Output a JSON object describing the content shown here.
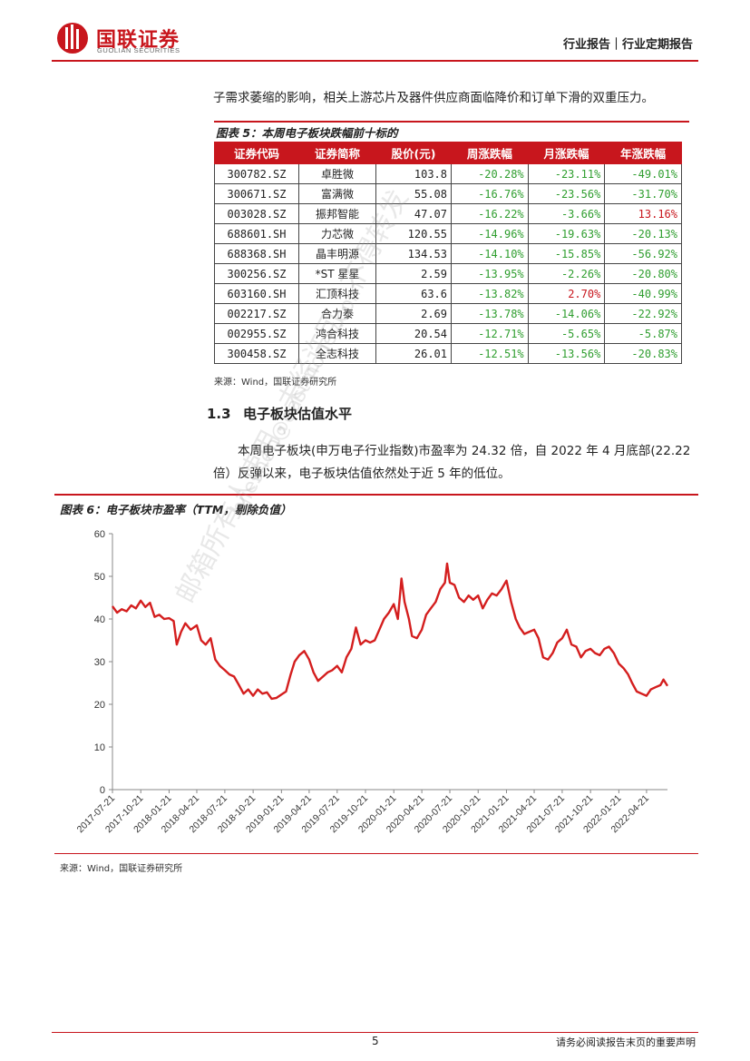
{
  "header": {
    "logo_cn": "国联证券",
    "logo_en": "GUOLIAN SECURITIES",
    "right_text": "行业报告｜行业定期报告"
  },
  "intro_text": "子需求萎缩的影响，相关上游芯片及器件供应商面临降价和订单下滑的双重压力。",
  "table5": {
    "title": "图表 5：本周电子板块跌幅前十标的",
    "headers": [
      "证券代码",
      "证券简称",
      "股价(元)",
      "周涨跌幅",
      "月涨跌幅",
      "年涨跌幅"
    ],
    "rows": [
      {
        "code": "300782.SZ",
        "name": "卓胜微",
        "price": "103.8",
        "week": "-20.28%",
        "month": "-23.11%",
        "year": "-49.01%",
        "year_up": false,
        "month_up": false
      },
      {
        "code": "300671.SZ",
        "name": "富满微",
        "price": "55.08",
        "week": "-16.76%",
        "month": "-23.56%",
        "year": "-31.70%",
        "year_up": false,
        "month_up": false
      },
      {
        "code": "003028.SZ",
        "name": "振邦智能",
        "price": "47.07",
        "week": "-16.22%",
        "month": "-3.66%",
        "year": "13.16%",
        "year_up": true,
        "month_up": false
      },
      {
        "code": "688601.SH",
        "name": "力芯微",
        "price": "120.55",
        "week": "-14.96%",
        "month": "-19.63%",
        "year": "-20.13%",
        "year_up": false,
        "month_up": false
      },
      {
        "code": "688368.SH",
        "name": "晶丰明源",
        "price": "134.53",
        "week": "-14.10%",
        "month": "-15.85%",
        "year": "-56.92%",
        "year_up": false,
        "month_up": false
      },
      {
        "code": "300256.SZ",
        "name": "*ST 星星",
        "price": "2.59",
        "week": "-13.95%",
        "month": "-2.26%",
        "year": "-20.80%",
        "year_up": false,
        "month_up": false
      },
      {
        "code": "603160.SH",
        "name": "汇顶科技",
        "price": "63.6",
        "week": "-13.82%",
        "month": "2.70%",
        "year": "-40.99%",
        "year_up": false,
        "month_up": true
      },
      {
        "code": "002217.SZ",
        "name": "合力泰",
        "price": "2.69",
        "week": "-13.78%",
        "month": "-14.06%",
        "year": "-22.92%",
        "year_up": false,
        "month_up": false
      },
      {
        "code": "002955.SZ",
        "name": "鸿合科技",
        "price": "20.54",
        "week": "-12.71%",
        "month": "-5.65%",
        "year": "-5.87%",
        "year_up": false,
        "month_up": false
      },
      {
        "code": "300458.SZ",
        "name": "全志科技",
        "price": "26.01",
        "week": "-12.51%",
        "month": "-13.56%",
        "year": "-20.83%",
        "year_up": false,
        "month_up": false
      }
    ],
    "source": "来源：Wind，国联证券研究所"
  },
  "section": {
    "number": "1.3",
    "title": "电子板块估值水平",
    "body": "本周电子板块(申万电子行业指数)市盈率为 24.32 倍，自 2022 年 4 月底部(22.22 倍）反弹以来，电子板块估值依然处于近 5 年的低位。"
  },
  "figure6": {
    "title": "图表 6：电子板块市盈率（TTM，剔除负值）",
    "source": "来源：Wind，国联证券研究所"
  },
  "chart_data": {
    "type": "line",
    "title": "",
    "xlabel": "",
    "ylabel": "",
    "ylim": [
      0,
      60
    ],
    "yticks": [
      0,
      10,
      20,
      30,
      40,
      50,
      60
    ],
    "xtick_labels": [
      "2017-07-21",
      "2017-10-21",
      "2018-01-21",
      "2018-04-21",
      "2018-07-21",
      "2018-10-21",
      "2019-01-21",
      "2019-04-21",
      "2019-07-21",
      "2019-10-21",
      "2020-01-21",
      "2020-04-21",
      "2020-07-21",
      "2020-10-21",
      "2021-01-21",
      "2021-04-21",
      "2021-07-21",
      "2021-10-21",
      "2022-01-21",
      "2022-04-21"
    ],
    "line_color": "#d41e1e",
    "grid": false,
    "series": [
      {
        "values": [
          [
            "2017-07-21",
            43.0
          ],
          [
            "2017-08-05",
            41.5
          ],
          [
            "2017-08-20",
            42.3
          ],
          [
            "2017-09-05",
            41.8
          ],
          [
            "2017-09-20",
            43.2
          ],
          [
            "2017-10-05",
            42.5
          ],
          [
            "2017-10-21",
            44.3
          ],
          [
            "2017-11-05",
            42.8
          ],
          [
            "2017-11-20",
            43.8
          ],
          [
            "2017-12-05",
            40.5
          ],
          [
            "2017-12-20",
            41.0
          ],
          [
            "2018-01-05",
            40.0
          ],
          [
            "2018-01-21",
            40.2
          ],
          [
            "2018-02-05",
            39.5
          ],
          [
            "2018-02-15",
            34.0
          ],
          [
            "2018-03-01",
            37.0
          ],
          [
            "2018-03-15",
            39.0
          ],
          [
            "2018-04-01",
            37.5
          ],
          [
            "2018-04-21",
            38.5
          ],
          [
            "2018-05-05",
            35.0
          ],
          [
            "2018-05-20",
            34.0
          ],
          [
            "2018-06-05",
            35.5
          ],
          [
            "2018-06-20",
            30.5
          ],
          [
            "2018-07-05",
            29.0
          ],
          [
            "2018-07-21",
            28.0
          ],
          [
            "2018-08-05",
            27.0
          ],
          [
            "2018-08-20",
            26.5
          ],
          [
            "2018-09-05",
            24.5
          ],
          [
            "2018-09-20",
            22.5
          ],
          [
            "2018-10-05",
            23.5
          ],
          [
            "2018-10-21",
            22.0
          ],
          [
            "2018-11-05",
            23.5
          ],
          [
            "2018-11-20",
            22.5
          ],
          [
            "2018-12-05",
            22.8
          ],
          [
            "2018-12-20",
            21.3
          ],
          [
            "2019-01-05",
            21.5
          ],
          [
            "2019-01-21",
            22.3
          ],
          [
            "2019-02-05",
            23.0
          ],
          [
            "2019-02-20",
            27.0
          ],
          [
            "2019-03-05",
            30.0
          ],
          [
            "2019-03-20",
            31.5
          ],
          [
            "2019-04-05",
            32.5
          ],
          [
            "2019-04-21",
            30.5
          ],
          [
            "2019-05-05",
            27.5
          ],
          [
            "2019-05-20",
            25.5
          ],
          [
            "2019-06-05",
            26.5
          ],
          [
            "2019-06-20",
            27.5
          ],
          [
            "2019-07-05",
            28.0
          ],
          [
            "2019-07-21",
            29.0
          ],
          [
            "2019-08-05",
            27.5
          ],
          [
            "2019-08-20",
            31.0
          ],
          [
            "2019-09-05",
            33.0
          ],
          [
            "2019-09-20",
            38.0
          ],
          [
            "2019-10-05",
            34.0
          ],
          [
            "2019-10-21",
            35.0
          ],
          [
            "2019-11-05",
            34.5
          ],
          [
            "2019-11-20",
            35.0
          ],
          [
            "2019-12-05",
            37.5
          ],
          [
            "2019-12-20",
            40.0
          ],
          [
            "2020-01-05",
            41.5
          ],
          [
            "2020-01-21",
            43.5
          ],
          [
            "2020-02-03",
            40.0
          ],
          [
            "2020-02-15",
            49.5
          ],
          [
            "2020-02-25",
            44.0
          ],
          [
            "2020-03-10",
            40.0
          ],
          [
            "2020-03-20",
            36.0
          ],
          [
            "2020-04-05",
            35.5
          ],
          [
            "2020-04-21",
            37.5
          ],
          [
            "2020-05-05",
            41.0
          ],
          [
            "2020-05-20",
            42.5
          ],
          [
            "2020-06-05",
            44.0
          ],
          [
            "2020-06-20",
            47.0
          ],
          [
            "2020-07-05",
            48.5
          ],
          [
            "2020-07-12",
            53.0
          ],
          [
            "2020-07-21",
            48.5
          ],
          [
            "2020-08-05",
            48.0
          ],
          [
            "2020-08-20",
            45.0
          ],
          [
            "2020-09-05",
            44.0
          ],
          [
            "2020-09-20",
            45.5
          ],
          [
            "2020-10-05",
            44.5
          ],
          [
            "2020-10-21",
            45.5
          ],
          [
            "2020-11-05",
            42.5
          ],
          [
            "2020-11-20",
            44.5
          ],
          [
            "2020-12-05",
            46.0
          ],
          [
            "2020-12-20",
            45.5
          ],
          [
            "2021-01-05",
            47.0
          ],
          [
            "2021-01-21",
            49.0
          ],
          [
            "2021-02-05",
            44.0
          ],
          [
            "2021-02-20",
            40.0
          ],
          [
            "2021-03-05",
            38.0
          ],
          [
            "2021-03-20",
            36.5
          ],
          [
            "2021-04-05",
            37.0
          ],
          [
            "2021-04-21",
            37.5
          ],
          [
            "2021-05-05",
            35.5
          ],
          [
            "2021-05-20",
            31.0
          ],
          [
            "2021-06-05",
            30.5
          ],
          [
            "2021-06-20",
            32.0
          ],
          [
            "2021-07-05",
            34.5
          ],
          [
            "2021-07-21",
            35.5
          ],
          [
            "2021-08-05",
            37.5
          ],
          [
            "2021-08-20",
            34.0
          ],
          [
            "2021-09-05",
            33.5
          ],
          [
            "2021-09-20",
            31.0
          ],
          [
            "2021-10-05",
            32.5
          ],
          [
            "2021-10-21",
            33.0
          ],
          [
            "2021-11-05",
            32.0
          ],
          [
            "2021-11-20",
            31.5
          ],
          [
            "2021-12-05",
            33.0
          ],
          [
            "2021-12-20",
            33.5
          ],
          [
            "2022-01-05",
            32.0
          ],
          [
            "2022-01-21",
            29.5
          ],
          [
            "2022-02-05",
            28.5
          ],
          [
            "2022-02-20",
            27.0
          ],
          [
            "2022-03-05",
            25.0
          ],
          [
            "2022-03-20",
            23.0
          ],
          [
            "2022-04-05",
            22.5
          ],
          [
            "2022-04-21",
            22.0
          ],
          [
            "2022-05-05",
            23.5
          ],
          [
            "2022-05-20",
            24.0
          ],
          [
            "2022-06-05",
            24.5
          ],
          [
            "2022-06-15",
            25.8
          ],
          [
            "2022-06-28",
            24.3
          ]
        ]
      }
    ]
  },
  "footer": {
    "page": "5",
    "right": "请务必阅读报告末页的重要声明"
  },
  "watermark": {
    "text1": "邮箱所有人使用，未经许可，不得转发",
    "text2": "bjieshen@eastmoney.com"
  }
}
